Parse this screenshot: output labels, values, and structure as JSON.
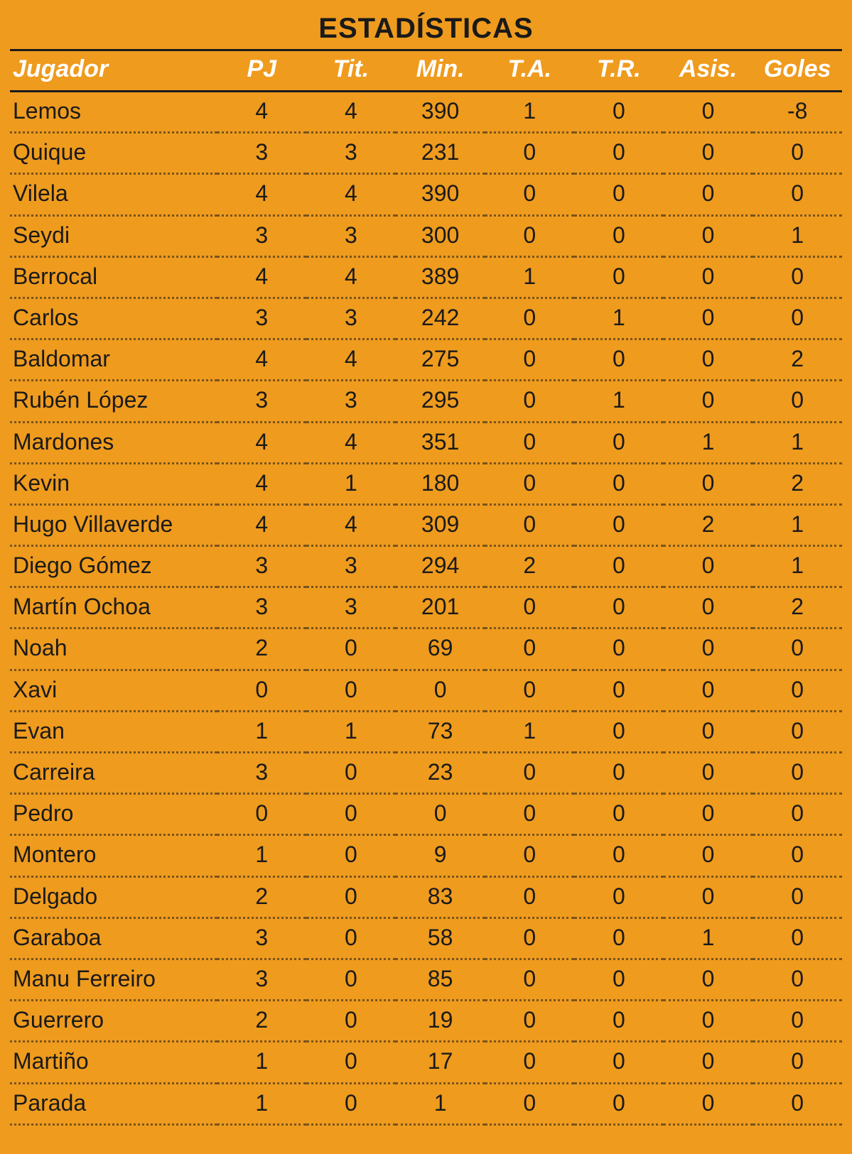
{
  "title": "ESTADÍSTICAS",
  "columns": [
    "Jugador",
    "PJ",
    "Tit.",
    "Min.",
    "T.A.",
    "T.R.",
    "Asis.",
    "Goles"
  ],
  "rows": [
    [
      "Lemos",
      "4",
      "4",
      "390",
      "1",
      "0",
      "0",
      "-8"
    ],
    [
      "Quique",
      "3",
      "3",
      "231",
      "0",
      "0",
      "0",
      "0"
    ],
    [
      "Vilela",
      "4",
      "4",
      "390",
      "0",
      "0",
      "0",
      "0"
    ],
    [
      "Seydi",
      "3",
      "3",
      "300",
      "0",
      "0",
      "0",
      "1"
    ],
    [
      "Berrocal",
      "4",
      "4",
      "389",
      "1",
      "0",
      "0",
      "0"
    ],
    [
      "Carlos",
      "3",
      "3",
      "242",
      "0",
      "1",
      "0",
      "0"
    ],
    [
      "Baldomar",
      "4",
      "4",
      "275",
      "0",
      "0",
      "0",
      "2"
    ],
    [
      "Rubén López",
      "3",
      "3",
      "295",
      "0",
      "1",
      "0",
      "0"
    ],
    [
      "Mardones",
      "4",
      "4",
      "351",
      "0",
      "0",
      "1",
      "1"
    ],
    [
      "Kevin",
      "4",
      "1",
      "180",
      "0",
      "0",
      "0",
      "2"
    ],
    [
      "Hugo Villaverde",
      "4",
      "4",
      "309",
      "0",
      "0",
      "2",
      "1"
    ],
    [
      "Diego Gómez",
      "3",
      "3",
      "294",
      "2",
      "0",
      "0",
      "1"
    ],
    [
      "Martín Ochoa",
      "3",
      "3",
      "201",
      "0",
      "0",
      "0",
      "2"
    ],
    [
      "Noah",
      "2",
      "0",
      "69",
      "0",
      "0",
      "0",
      "0"
    ],
    [
      "Xavi",
      "0",
      "0",
      "0",
      "0",
      "0",
      "0",
      "0"
    ],
    [
      "Evan",
      "1",
      "1",
      "73",
      "1",
      "0",
      "0",
      "0"
    ],
    [
      "Carreira",
      "3",
      "0",
      "23",
      "0",
      "0",
      "0",
      "0"
    ],
    [
      "Pedro",
      "0",
      "0",
      "0",
      "0",
      "0",
      "0",
      "0"
    ],
    [
      "Montero",
      "1",
      "0",
      "9",
      "0",
      "0",
      "0",
      "0"
    ],
    [
      "Delgado",
      "2",
      "0",
      "83",
      "0",
      "0",
      "0",
      "0"
    ],
    [
      "Garaboa",
      "3",
      "0",
      "58",
      "0",
      "0",
      "1",
      "0"
    ],
    [
      "Manu Ferreiro",
      "3",
      "0",
      "85",
      "0",
      "0",
      "0",
      "0"
    ],
    [
      "Guerrero",
      "2",
      "0",
      "19",
      "0",
      "0",
      "0",
      "0"
    ],
    [
      "Martiño",
      "1",
      "0",
      "17",
      "0",
      "0",
      "0",
      "0"
    ],
    [
      "Parada",
      "1",
      "0",
      "1",
      "0",
      "0",
      "0",
      "0"
    ]
  ],
  "style": {
    "background_color": "#ef9b1e",
    "title_color": "#1a1a1a",
    "title_fontsize": 40,
    "title_fontweight": 900,
    "header_text_color": "#ffffff",
    "header_fontsize": 34,
    "header_fontstyle": "italic",
    "header_border_color": "#1a1a1a",
    "header_border_width": 3,
    "cell_text_color": "#1a1a1a",
    "cell_fontsize": 32,
    "row_border_style": "dotted",
    "row_border_color": "rgba(26,26,26,0.55)",
    "col_widths": {
      "jugador": 290,
      "num": 125
    },
    "col_align": [
      "left",
      "center",
      "center",
      "center",
      "center",
      "center",
      "center",
      "center"
    ]
  }
}
